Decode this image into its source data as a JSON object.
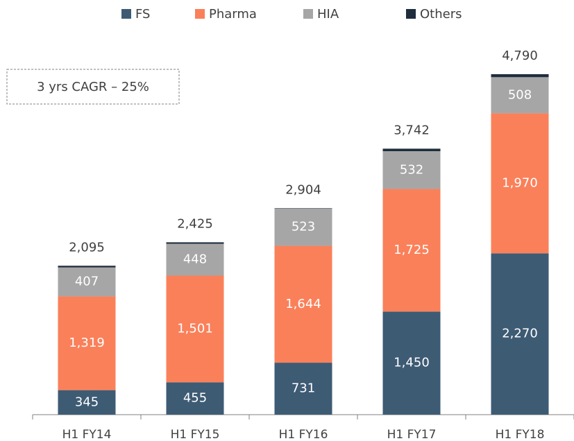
{
  "chart_data": {
    "type": "stacked_bar",
    "annotation": "3 yrs CAGR – 25%",
    "categories": [
      "H1 FY14",
      "H1 FY15",
      "H1 FY16",
      "H1 FY17",
      "H1 FY18"
    ],
    "series": [
      {
        "name": "FS",
        "color": "#3e5b74",
        "values": [
          345,
          455,
          731,
          1450,
          2270
        ],
        "value_labels": [
          "345",
          "455",
          "731",
          "1,450",
          "2,270"
        ]
      },
      {
        "name": "Pharma",
        "color": "#fa805a",
        "values": [
          1319,
          1501,
          1644,
          1725,
          1970
        ],
        "value_labels": [
          "1,319",
          "1,501",
          "1,644",
          "1,725",
          "1,970"
        ]
      },
      {
        "name": "HIA",
        "color": "#a6a6a6",
        "values": [
          407,
          448,
          523,
          532,
          508
        ],
        "value_labels": [
          "407",
          "448",
          "523",
          "532",
          "508"
        ]
      },
      {
        "name": "Others",
        "color": "#1f2d3d",
        "values": [
          24,
          21,
          6,
          35,
          42
        ]
      }
    ],
    "totals": {
      "values": [
        2095,
        2425,
        2904,
        3742,
        4790
      ],
      "value_labels": [
        "2,095",
        "2,425",
        "2,904",
        "3,742",
        "4,790"
      ]
    }
  }
}
